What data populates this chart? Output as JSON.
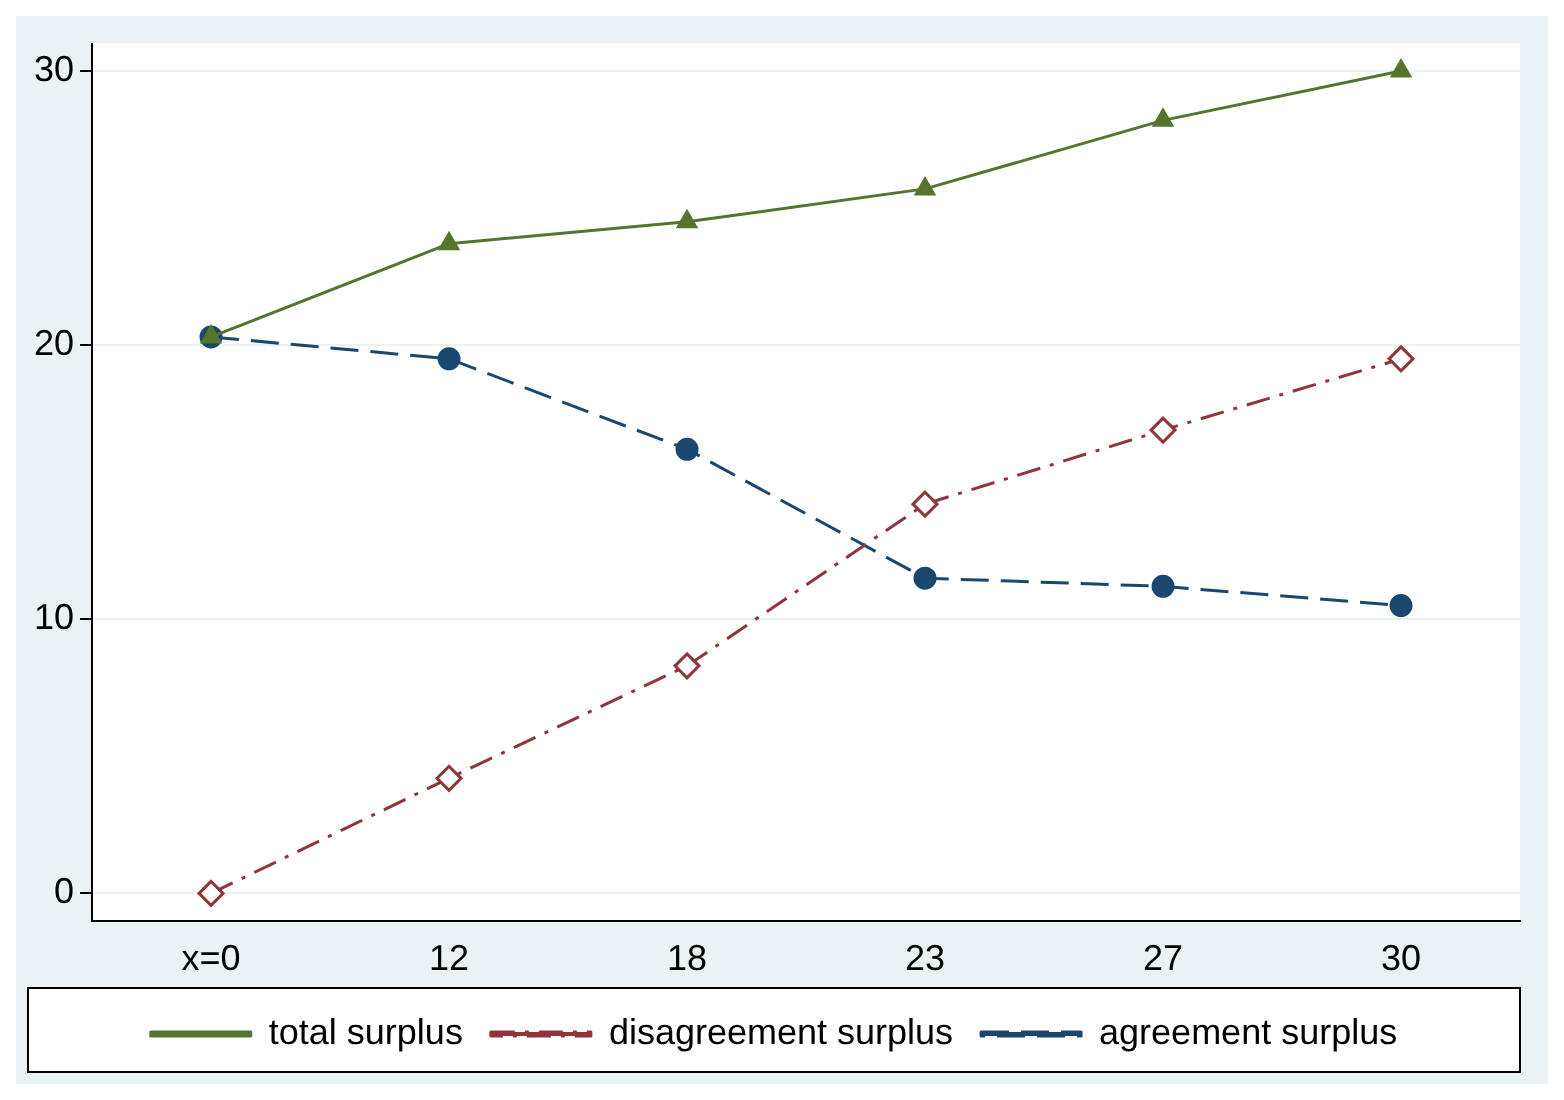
{
  "chart_data": {
    "type": "line",
    "categories": [
      "x=0",
      "12",
      "18",
      "23",
      "27",
      "30"
    ],
    "series": [
      {
        "name": "agreement surplus",
        "color": "#1a476f",
        "marker": "circle",
        "line_style": "dashed",
        "values": [
          20.3,
          19.5,
          16.2,
          11.5,
          11.2,
          10.5
        ]
      },
      {
        "name": "disagreement surplus",
        "color": "#90353b",
        "marker": "diamond",
        "line_style": "dashdot",
        "values": [
          0,
          4.2,
          8.3,
          14.2,
          16.9,
          19.5
        ]
      },
      {
        "name": "total surplus",
        "color": "#55752f",
        "marker": "triangle",
        "line_style": "solid",
        "values": [
          20.3,
          23.7,
          24.5,
          25.7,
          28.2,
          30
        ]
      }
    ],
    "ylim": [
      -1,
      31
    ],
    "yticks": [
      0,
      10,
      20,
      30
    ],
    "grid": "y",
    "legend": "bottom"
  }
}
